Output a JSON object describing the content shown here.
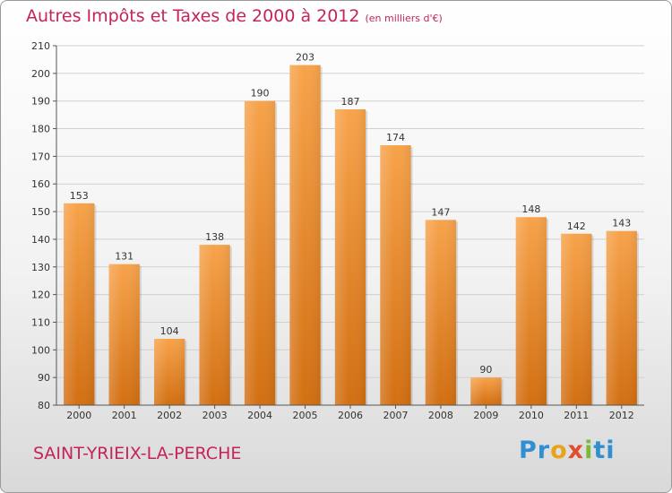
{
  "header": {
    "title": "Autres Impôts et Taxes de 2000 à 2012",
    "unit": "(en milliers d'€)"
  },
  "footer": {
    "city": "SAINT-YRIEIX-LA-PERCHE",
    "logo_parts": [
      "Pr",
      "o",
      "x",
      "i",
      "ti"
    ]
  },
  "colors": {
    "title": "#c4245a",
    "bar_top": "#f7a34b",
    "bar_bottom": "#d26f12",
    "grid": "#d0d0d0"
  },
  "chart_data": {
    "type": "bar",
    "title": "Autres Impôts et Taxes de 2000 à 2012",
    "xlabel": "",
    "ylabel": "",
    "categories": [
      "2000",
      "2001",
      "2002",
      "2003",
      "2004",
      "2005",
      "2006",
      "2007",
      "2008",
      "2009",
      "2010",
      "2011",
      "2012"
    ],
    "values": [
      153,
      131,
      104,
      138,
      190,
      203,
      187,
      174,
      147,
      90,
      148,
      142,
      143
    ],
    "ylim": [
      80,
      210
    ],
    "yticks": [
      80,
      90,
      100,
      110,
      120,
      130,
      140,
      150,
      160,
      170,
      180,
      190,
      200,
      210
    ],
    "grid": true,
    "legend": "none"
  }
}
